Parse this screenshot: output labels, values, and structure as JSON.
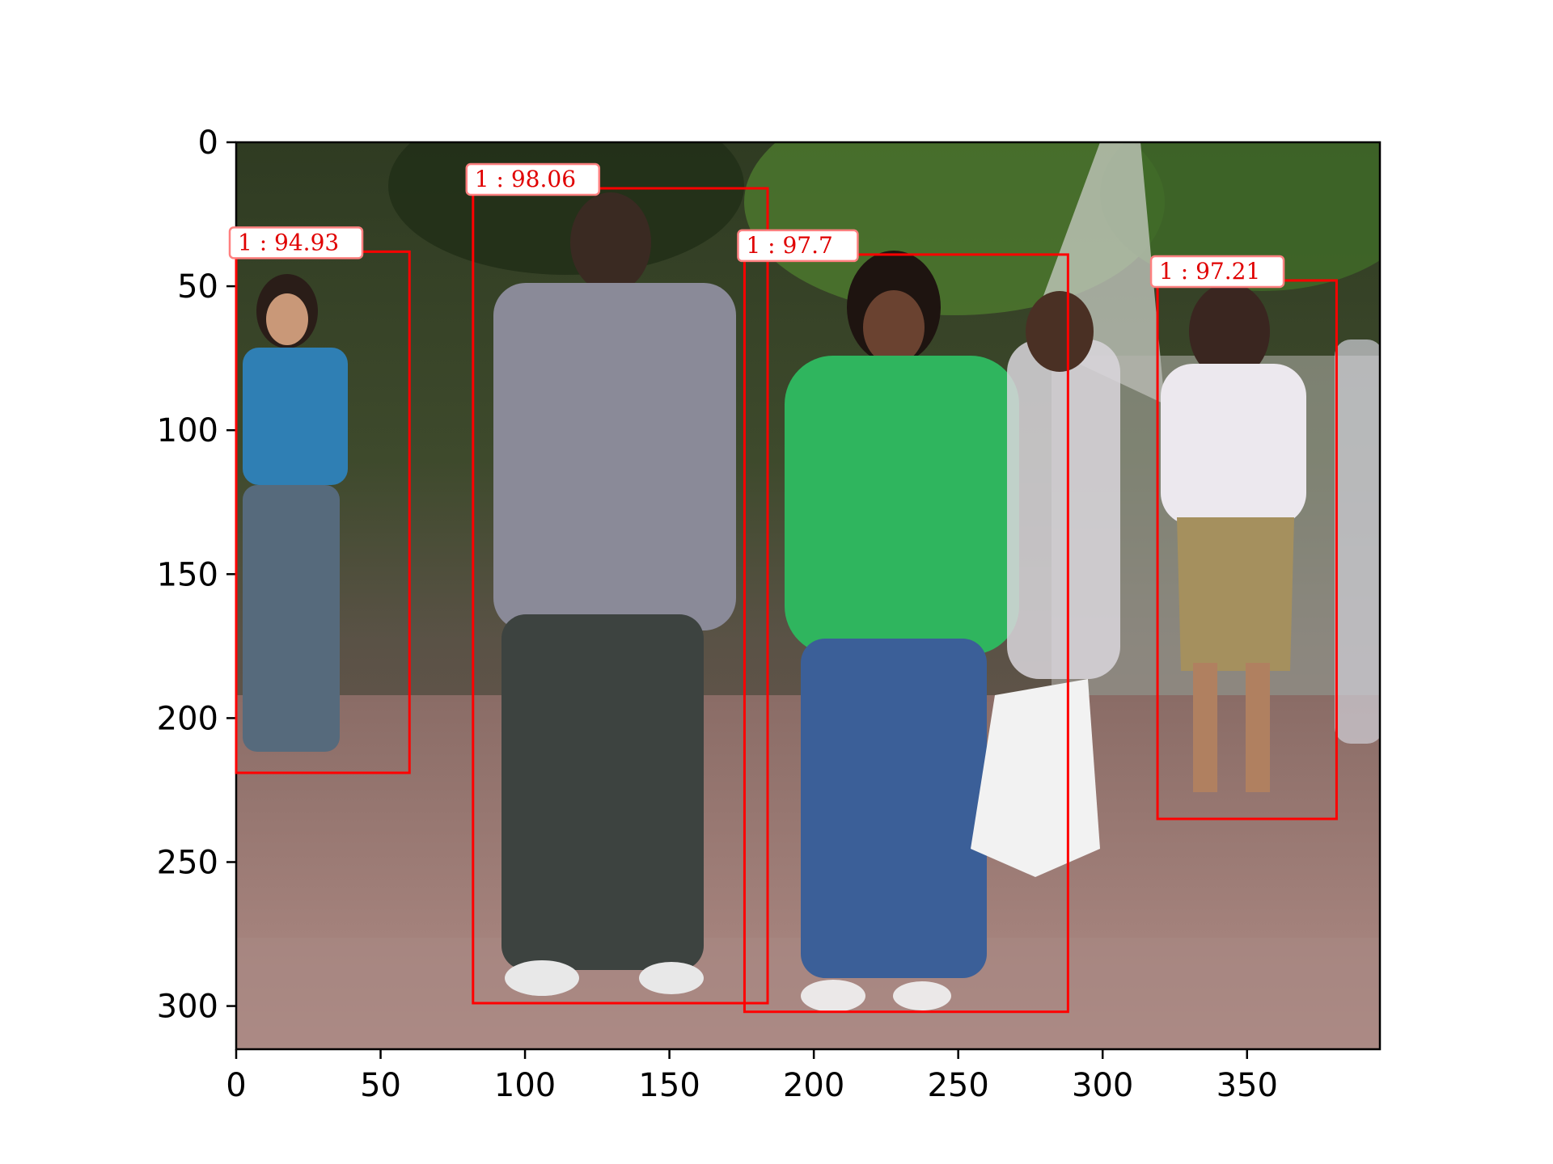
{
  "image": {
    "description_colors": {
      "box": "#ff0000",
      "label_text": "#e00000",
      "label_border": "#ff8080"
    },
    "x_axis": {
      "ticks": [
        0,
        50,
        100,
        150,
        200,
        250,
        300,
        350
      ],
      "range": [
        0,
        396
      ]
    },
    "y_axis": {
      "ticks": [
        0,
        50,
        100,
        150,
        200,
        250,
        300
      ],
      "range": [
        0,
        315
      ],
      "inverted": true
    },
    "detections": [
      {
        "label": "1 : 94.93",
        "x0": 0,
        "y0": 38,
        "x1": 60,
        "y1": 219
      },
      {
        "label": "1 : 98.06",
        "x0": 82,
        "y0": 16,
        "x1": 184,
        "y1": 299
      },
      {
        "label": "1 : 97.7",
        "x0": 176,
        "y0": 39,
        "x1": 288,
        "y1": 302
      },
      {
        "label": "1 : 97.21",
        "x0": 319,
        "y0": 48,
        "x1": 381,
        "y1": 235
      }
    ]
  }
}
